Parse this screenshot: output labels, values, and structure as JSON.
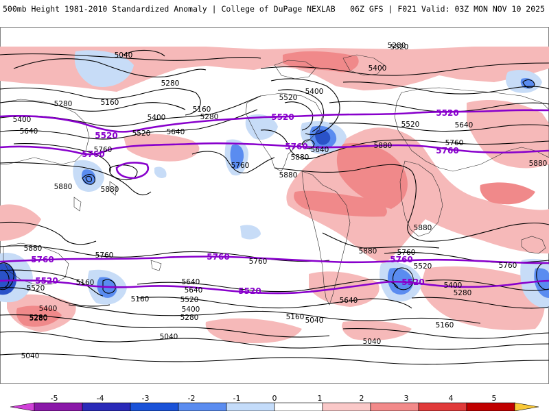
{
  "header": {
    "title": "500mb Height 1981-2010 Standardized Anomaly | College of DuPage NEXLAB",
    "run_info": "06Z GFS | F021 Valid: 03Z MON NOV 10 2025"
  },
  "contour_labels": {
    "black": [
      {
        "text": "5040"
      },
      {
        "text": "5280"
      },
      {
        "text": "5160"
      },
      {
        "text": "5280"
      },
      {
        "text": "5400"
      },
      {
        "text": "5640"
      },
      {
        "text": "5520"
      },
      {
        "text": "5400"
      },
      {
        "text": "5640"
      },
      {
        "text": "5520"
      },
      {
        "text": "5160"
      },
      {
        "text": "5280"
      },
      {
        "text": "5760"
      },
      {
        "text": "5760"
      },
      {
        "text": "5880"
      },
      {
        "text": "5880"
      },
      {
        "text": "5880"
      },
      {
        "text": "5880"
      },
      {
        "text": "5400"
      },
      {
        "text": "5520"
      },
      {
        "text": "5640"
      },
      {
        "text": "5400"
      },
      {
        "text": "5520"
      },
      {
        "text": "5280"
      },
      {
        "text": "5880"
      },
      {
        "text": "5640"
      },
      {
        "text": "5760"
      },
      {
        "text": "5880"
      },
      {
        "text": "5880"
      },
      {
        "text": "5880"
      },
      {
        "text": "5760"
      },
      {
        "text": "5760"
      },
      {
        "text": "5640"
      },
      {
        "text": "5520"
      },
      {
        "text": "5400"
      },
      {
        "text": "5280"
      },
      {
        "text": "5520"
      },
      {
        "text": "5400"
      },
      {
        "text": "5280"
      },
      {
        "text": "5160"
      },
      {
        "text": "5160"
      },
      {
        "text": "5040"
      },
      {
        "text": "5040"
      },
      {
        "text": "5040"
      },
      {
        "text": "5640"
      },
      {
        "text": "5400"
      },
      {
        "text": "5280"
      },
      {
        "text": "5160"
      },
      {
        "text": "5040"
      },
      {
        "text": "5760"
      },
      {
        "text": "5520"
      },
      {
        "text": "5640"
      },
      {
        "text": "5880"
      },
      {
        "text": "5760"
      },
      {
        "text": "5160"
      },
      {
        "text": "5280"
      }
    ],
    "purple": [
      {
        "text": "5520"
      },
      {
        "text": "5520"
      },
      {
        "text": "5520"
      },
      {
        "text": "5760"
      },
      {
        "text": "5760"
      },
      {
        "text": "5760"
      },
      {
        "text": "5760"
      },
      {
        "text": "5760"
      },
      {
        "text": "5760"
      },
      {
        "text": "5520"
      },
      {
        "text": "5520"
      },
      {
        "text": "5520"
      },
      {
        "text": "5520"
      }
    ]
  },
  "colorbar": {
    "ticks": [
      "-5",
      "-4",
      "-3",
      "-2",
      "-1",
      "0",
      "1",
      "2",
      "3",
      "4",
      "5"
    ],
    "colors": [
      "#8a18a8",
      "#2a2ab8",
      "#1a52d8",
      "#5a8cf0",
      "#c4dcfa",
      "#ffffff",
      "#fac8c8",
      "#f28a8a",
      "#e03a3a",
      "#c00000",
      "#f0a000"
    ],
    "min_color": "#d040d8",
    "max_color": "#f8c838"
  },
  "colors": {
    "contour_black": "#000000",
    "contour_purple": "#8800cc",
    "positive_anomaly": "#f6b9b9",
    "negative_anomaly": "#c7dcf7",
    "coastline": "#2a2a2a"
  }
}
